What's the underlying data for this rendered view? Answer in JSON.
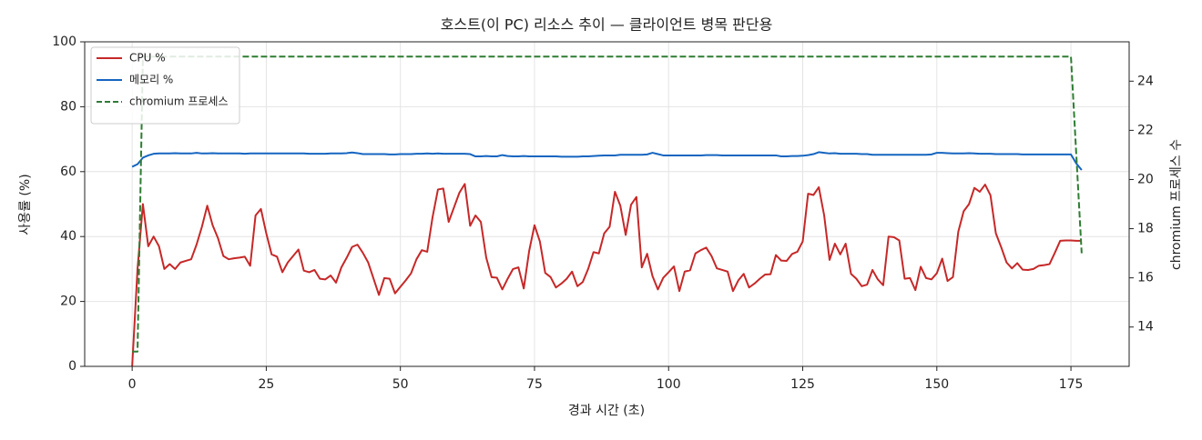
{
  "chart_data": {
    "type": "line",
    "title": "호스트(이 PC) 리소스 추이 — 클라이언트 병목 판단용",
    "xlabel": "경과 시간 (초)",
    "ylabel": "사용률 (%)",
    "y2label": "chromium 프로세스 수",
    "grid": true,
    "legend": "upper left",
    "xlim": [
      -8.85,
      185.85
    ],
    "xticks": [
      0,
      25,
      50,
      75,
      100,
      125,
      150,
      175
    ],
    "ylim": [
      0,
      100
    ],
    "yticks": [
      0,
      20,
      40,
      60,
      80,
      100
    ],
    "y2lim": [
      12.4,
      25.6
    ],
    "y2ticks": [
      14,
      16,
      18,
      20,
      22,
      24
    ],
    "x": [
      0,
      1,
      2,
      3,
      4,
      5,
      6,
      7,
      8,
      9,
      10,
      11,
      12,
      13,
      14,
      15,
      16,
      17,
      18,
      19,
      20,
      21,
      22,
      23,
      24,
      25,
      26,
      27,
      28,
      29,
      30,
      31,
      32,
      33,
      34,
      35,
      36,
      37,
      38,
      39,
      40,
      41,
      42,
      43,
      44,
      45,
      46,
      47,
      48,
      49,
      50,
      51,
      52,
      53,
      54,
      55,
      56,
      57,
      58,
      59,
      60,
      61,
      62,
      63,
      64,
      65,
      66,
      67,
      68,
      69,
      70,
      71,
      72,
      73,
      74,
      75,
      76,
      77,
      78,
      79,
      80,
      81,
      82,
      83,
      84,
      85,
      86,
      87,
      88,
      89,
      90,
      91,
      92,
      93,
      94,
      95,
      96,
      97,
      98,
      99,
      100,
      101,
      102,
      103,
      104,
      105,
      106,
      107,
      108,
      109,
      110,
      111,
      112,
      113,
      114,
      115,
      116,
      117,
      118,
      119,
      120,
      121,
      122,
      123,
      124,
      125,
      126,
      127,
      128,
      129,
      130,
      131,
      132,
      133,
      134,
      135,
      136,
      137,
      138,
      139,
      140,
      141,
      142,
      143,
      144,
      145,
      146,
      147,
      148,
      149,
      150,
      151,
      152,
      153,
      154,
      155,
      156,
      157,
      158,
      159,
      160,
      161,
      162,
      163,
      164,
      165,
      166,
      167,
      168,
      169,
      170,
      171,
      172,
      173,
      174,
      175,
      176,
      177
    ],
    "series": [
      {
        "name": "CPU %",
        "color": "#c62828",
        "linestyle": "solid",
        "values": [
          0,
          30,
          50,
          37,
          40,
          37,
          30,
          31.5,
          30,
          32,
          32.5,
          33,
          37.5,
          43,
          49.5,
          43.5,
          39.5,
          34,
          33,
          33.3,
          33.5,
          33.8,
          31,
          46.5,
          48.5,
          41,
          34.5,
          33.8,
          29,
          32,
          34,
          36,
          29.5,
          29,
          29.7,
          27,
          26.8,
          28,
          25.8,
          30.5,
          33.5,
          36.8,
          37.5,
          35,
          32,
          27,
          22,
          27.2,
          27,
          22.5,
          24.5,
          26.5,
          28.7,
          33,
          35.8,
          35.3,
          46,
          54.5,
          54.8,
          44.5,
          49,
          53.5,
          56.2,
          43.3,
          46.5,
          44.5,
          33.5,
          27.5,
          27.3,
          23.7,
          27,
          30,
          30.5,
          24,
          35.5,
          43.5,
          38.5,
          28.8,
          27.5,
          24.3,
          25.5,
          27,
          29.2,
          24.7,
          26,
          30,
          35.2,
          34.8,
          41,
          43,
          53.8,
          49.5,
          40.5,
          49.8,
          52.2,
          30.5,
          34.7,
          27.8,
          23.7,
          27.3,
          29,
          30.8,
          23.2,
          29.2,
          29.6,
          34.8,
          35.8,
          36.6,
          34,
          30.2,
          29.7,
          29.2,
          23.2,
          26.5,
          28.5,
          24.3,
          25.5,
          27,
          28.3,
          28.4,
          34.3,
          32.6,
          32.5,
          34.6,
          35.3,
          38.5,
          53.2,
          52.8,
          55.2,
          46.5,
          32.8,
          37.8,
          34.5,
          37.8,
          28.5,
          27,
          24.7,
          25.2,
          29.7,
          26.8,
          25,
          40,
          39.8,
          38.8,
          27,
          27.2,
          23.5,
          30.7,
          27.2,
          26.8,
          28.7,
          33.2,
          26.3,
          27.5,
          41.5,
          47.8,
          50,
          55,
          53.8,
          56,
          52.7,
          41,
          36.7,
          32,
          30.2,
          31.8,
          29.8,
          29.7,
          30,
          31,
          31.2,
          31.5,
          35,
          38.7,
          38.8,
          38.8,
          38.7,
          38.7
        ]
      },
      {
        "name": "메모리 %",
        "color": "#1565c0",
        "linestyle": "solid",
        "values": [
          61.5,
          62.3,
          64.3,
          65,
          65.5,
          65.6,
          65.6,
          65.6,
          65.7,
          65.6,
          65.6,
          65.6,
          65.8,
          65.6,
          65.6,
          65.7,
          65.6,
          65.6,
          65.6,
          65.6,
          65.6,
          65.5,
          65.6,
          65.6,
          65.6,
          65.6,
          65.6,
          65.6,
          65.6,
          65.6,
          65.6,
          65.6,
          65.6,
          65.5,
          65.5,
          65.5,
          65.5,
          65.6,
          65.6,
          65.6,
          65.7,
          65.9,
          65.7,
          65.4,
          65.4,
          65.4,
          65.4,
          65.4,
          65.3,
          65.3,
          65.4,
          65.4,
          65.4,
          65.5,
          65.5,
          65.6,
          65.5,
          65.6,
          65.5,
          65.5,
          65.5,
          65.5,
          65.5,
          65.4,
          64.7,
          64.7,
          64.8,
          64.7,
          64.7,
          65.1,
          64.8,
          64.7,
          64.7,
          64.8,
          64.7,
          64.7,
          64.7,
          64.7,
          64.7,
          64.7,
          64.6,
          64.6,
          64.6,
          64.6,
          64.7,
          64.7,
          64.8,
          64.9,
          65,
          65,
          65,
          65.2,
          65.2,
          65.2,
          65.2,
          65.2,
          65.3,
          65.8,
          65.4,
          65,
          65,
          65,
          65,
          65,
          65,
          65,
          65,
          65.1,
          65.1,
          65.1,
          65,
          65,
          65,
          65,
          65,
          65,
          65,
          65,
          65,
          65,
          65,
          64.7,
          64.7,
          64.8,
          64.8,
          64.9,
          65.1,
          65.4,
          66,
          65.8,
          65.6,
          65.7,
          65.5,
          65.5,
          65.5,
          65.5,
          65.4,
          65.4,
          65.2,
          65.2,
          65.2,
          65.2,
          65.2,
          65.2,
          65.2,
          65.2,
          65.2,
          65.2,
          65.2,
          65.3,
          65.8,
          65.8,
          65.7,
          65.6,
          65.6,
          65.6,
          65.7,
          65.6,
          65.5,
          65.5,
          65.5,
          65.4,
          65.4,
          65.4,
          65.4,
          65.4,
          65.3,
          65.3,
          65.3,
          65.3,
          65.3,
          65.3,
          65.3,
          65.3,
          65.3,
          65.3,
          62.5,
          60.5
        ]
      },
      {
        "name": "chromium 프로세스",
        "color": "#2e7d32",
        "linestyle": "dashed",
        "axis": "y2",
        "values": [
          13,
          13,
          25,
          25,
          25,
          25,
          25,
          25,
          25,
          25,
          25,
          25,
          25,
          25,
          25,
          25,
          25,
          25,
          25,
          25,
          25,
          25,
          25,
          25,
          25,
          25,
          25,
          25,
          25,
          25,
          25,
          25,
          25,
          25,
          25,
          25,
          25,
          25,
          25,
          25,
          25,
          25,
          25,
          25,
          25,
          25,
          25,
          25,
          25,
          25,
          25,
          25,
          25,
          25,
          25,
          25,
          25,
          25,
          25,
          25,
          25,
          25,
          25,
          25,
          25,
          25,
          25,
          25,
          25,
          25,
          25,
          25,
          25,
          25,
          25,
          25,
          25,
          25,
          25,
          25,
          25,
          25,
          25,
          25,
          25,
          25,
          25,
          25,
          25,
          25,
          25,
          25,
          25,
          25,
          25,
          25,
          25,
          25,
          25,
          25,
          25,
          25,
          25,
          25,
          25,
          25,
          25,
          25,
          25,
          25,
          25,
          25,
          25,
          25,
          25,
          25,
          25,
          25,
          25,
          25,
          25,
          25,
          25,
          25,
          25,
          25,
          25,
          25,
          25,
          25,
          25,
          25,
          25,
          25,
          25,
          25,
          25,
          25,
          25,
          25,
          25,
          25,
          25,
          25,
          25,
          25,
          25,
          25,
          25,
          25,
          25,
          25,
          25,
          25,
          25,
          25,
          25,
          25,
          25,
          25,
          25,
          25,
          25,
          25,
          25,
          25,
          25,
          25,
          25,
          25,
          25,
          25,
          25,
          25,
          25,
          25,
          21,
          17
        ]
      }
    ]
  }
}
